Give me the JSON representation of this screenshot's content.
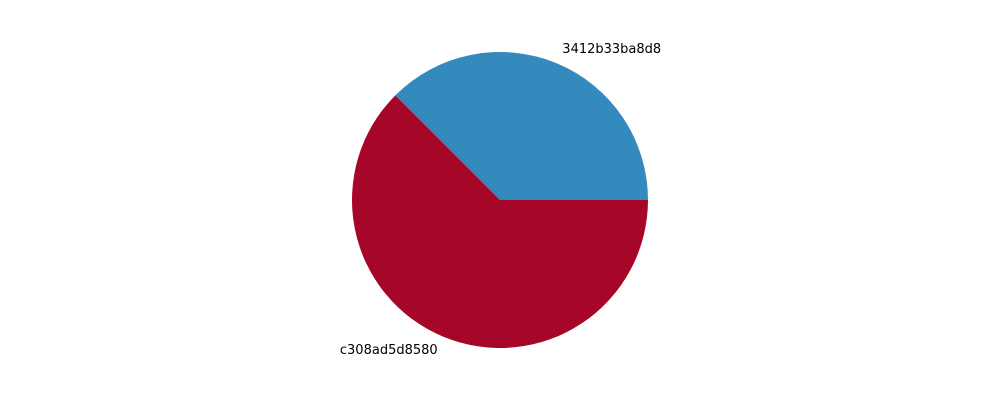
{
  "chart_data": {
    "type": "pie",
    "title": "",
    "slices": [
      {
        "label": "3412b33ba8d8",
        "value": 37.5,
        "color": "#348abd"
      },
      {
        "label": "c308ad5d8580",
        "value": 62.5,
        "color": "#a60628"
      }
    ],
    "start_angle_deg": 0,
    "direction": "counterclockwise",
    "legend": "none"
  }
}
